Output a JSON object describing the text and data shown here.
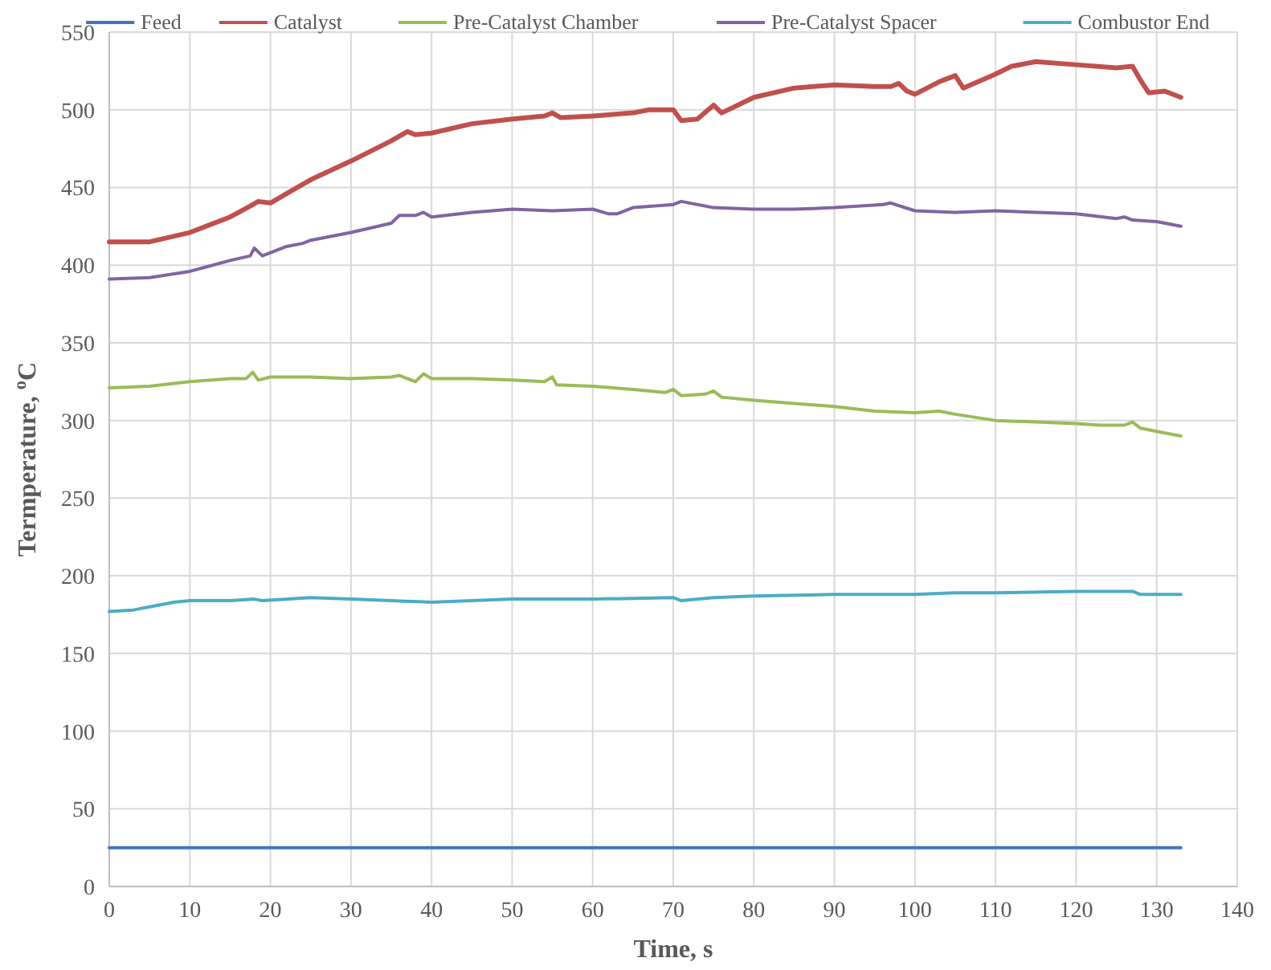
{
  "chart_data": {
    "type": "line",
    "xlabel": "Time, s",
    "ylabel": "Termperature, $^{o}$C",
    "xlim": [
      0,
      140
    ],
    "xticks": [
      0,
      10,
      20,
      30,
      40,
      50,
      60,
      70,
      80,
      90,
      100,
      110,
      120,
      130,
      140
    ],
    "ylim": [
      0,
      550
    ],
    "yticks": [
      0,
      50,
      100,
      150,
      200,
      250,
      300,
      350,
      400,
      450,
      500,
      550
    ],
    "grid": true,
    "legend": "top",
    "marker": "none",
    "line_style": "solid",
    "series": [
      {
        "name": "Feed",
        "color": "#4472c4",
        "x": [
          0,
          30,
          60,
          90,
          120,
          133
        ],
        "values": [
          25,
          25,
          25,
          25,
          25,
          25
        ]
      },
      {
        "name": "Catalyst",
        "color": "#c0504d",
        "x": [
          0,
          5,
          10,
          15,
          17.5,
          18.5,
          20,
          22,
          25,
          30,
          35,
          37,
          38,
          40,
          45,
          50,
          54,
          55,
          56,
          60,
          65,
          67,
          70,
          71,
          73,
          75,
          76,
          78,
          80,
          85,
          90,
          95,
          97,
          98,
          99,
          100,
          103,
          105,
          106,
          110,
          112,
          115,
          120,
          125,
          127,
          128,
          129,
          131,
          133
        ],
        "values": [
          415,
          415,
          421,
          431,
          438,
          441,
          440,
          446,
          455,
          467,
          480,
          486,
          484,
          485,
          491,
          494,
          496,
          498,
          495,
          496,
          498,
          500,
          500,
          493,
          494,
          503,
          498,
          503,
          508,
          514,
          516,
          515,
          515,
          517,
          512,
          510,
          518,
          522,
          514,
          523,
          528,
          531,
          529,
          527,
          528,
          519,
          511,
          512,
          508
        ]
      },
      {
        "name": "Pre-Catalyst Chamber",
        "color": "#9bbb59",
        "x": [
          0,
          5,
          10,
          15,
          17,
          17.8,
          18.5,
          20,
          25,
          30,
          35,
          36,
          38,
          39,
          40,
          45,
          50,
          54,
          55,
          55.5,
          60,
          65,
          69,
          70,
          71,
          74,
          75,
          76,
          80,
          90,
          95,
          100,
          103,
          105,
          110,
          115,
          120,
          123,
          126,
          127,
          128,
          130,
          133
        ],
        "values": [
          321,
          322,
          325,
          327,
          327,
          331,
          326,
          328,
          328,
          327,
          328,
          329,
          325,
          330,
          327,
          327,
          326,
          325,
          328,
          323,
          322,
          320,
          318,
          320,
          316,
          317,
          319,
          315,
          313,
          309,
          306,
          305,
          306,
          304,
          300,
          299,
          298,
          297,
          297,
          299,
          295,
          293,
          290
        ]
      },
      {
        "name": "Pre-Catalyst Spacer",
        "color": "#8064a2",
        "x": [
          0,
          5,
          10,
          15,
          17.5,
          18,
          19,
          22,
          24,
          25,
          30,
          35,
          36,
          38,
          39,
          40,
          45,
          50,
          55,
          60,
          62,
          63,
          65,
          70,
          71,
          75,
          80,
          85,
          90,
          96,
          97,
          100,
          105,
          110,
          120,
          125,
          126,
          127,
          130,
          133
        ],
        "values": [
          391,
          392,
          396,
          403,
          406,
          411,
          406,
          412,
          414,
          416,
          421,
          427,
          432,
          432,
          434,
          431,
          434,
          436,
          435,
          436,
          433,
          433,
          437,
          439,
          441,
          437,
          436,
          436,
          437,
          439,
          440,
          435,
          434,
          435,
          433,
          430,
          431,
          429,
          428,
          425
        ]
      },
      {
        "name": "Combustor End",
        "color": "#4bacc6",
        "x": [
          0,
          3,
          5,
          8,
          10,
          15,
          18,
          19,
          25,
          30,
          35,
          40,
          45,
          50,
          55,
          60,
          70,
          71,
          75,
          80,
          90,
          100,
          105,
          110,
          120,
          126,
          127,
          128,
          133
        ],
        "values": [
          177,
          178,
          180,
          183,
          184,
          184,
          185,
          184,
          186,
          185,
          184,
          183,
          184,
          185,
          185,
          185,
          186,
          184,
          186,
          187,
          188,
          188,
          189,
          189,
          190,
          190,
          190,
          188,
          188
        ]
      }
    ]
  }
}
